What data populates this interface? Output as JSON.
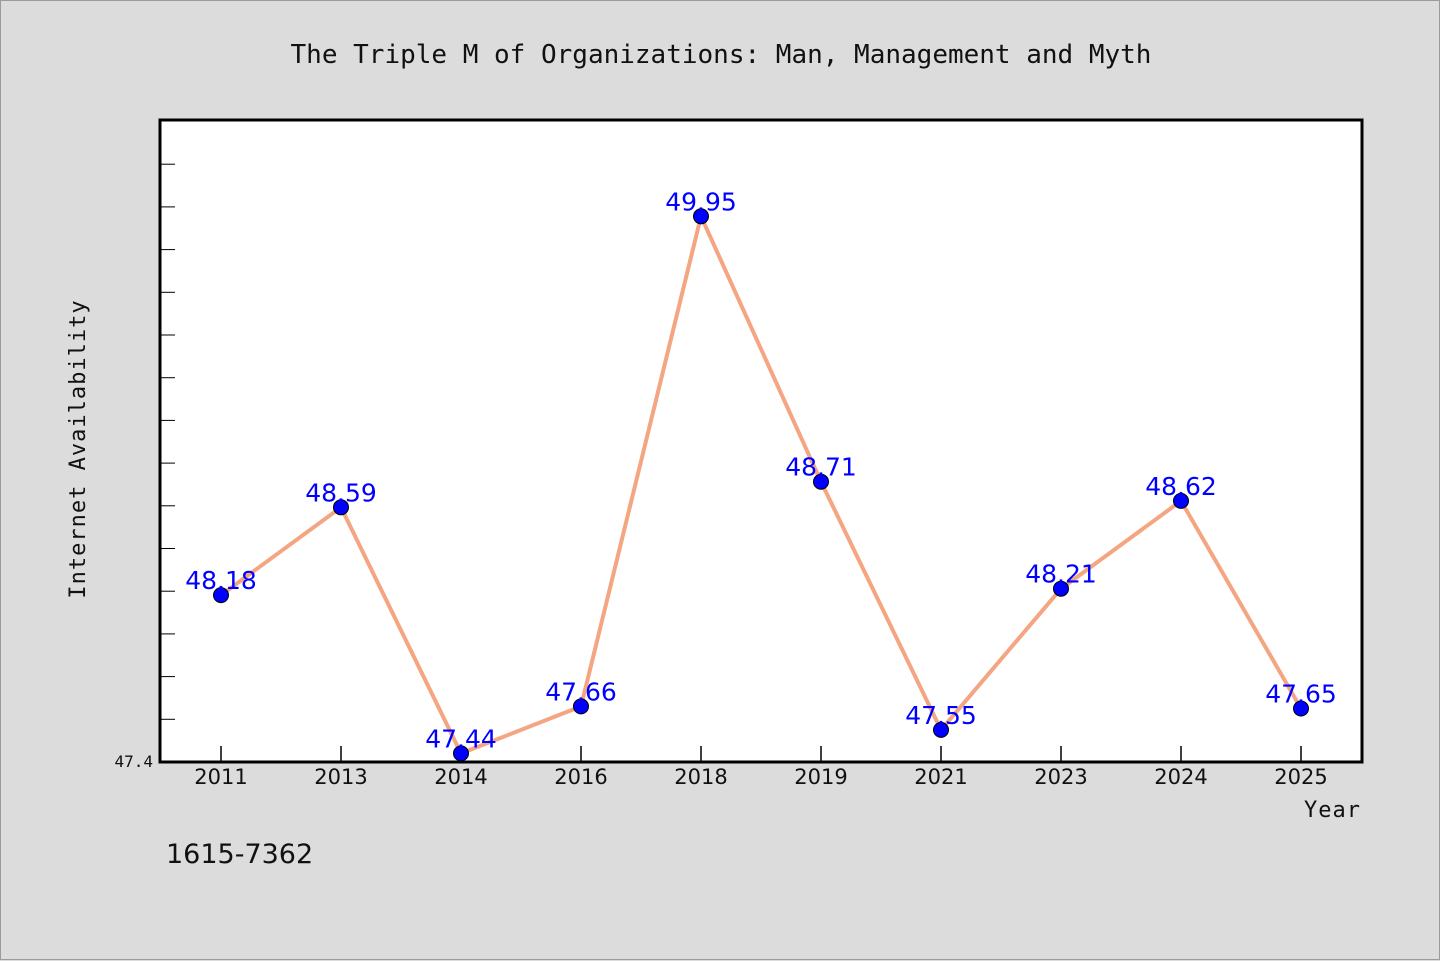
{
  "chart_data": {
    "type": "line",
    "title": "The Triple M of Organizations: Man, Management and Myth",
    "xlabel": "Year",
    "ylabel": "Internet Availability",
    "categories": [
      "2011",
      "2013",
      "2014",
      "2016",
      "2018",
      "2019",
      "2021",
      "2023",
      "2024",
      "2025"
    ],
    "series": [
      {
        "values": [
          48.18,
          48.59,
          47.44,
          47.66,
          49.95,
          48.71,
          47.55,
          48.21,
          48.62,
          47.65
        ],
        "labels": [
          "48.18",
          "48.59",
          "47.44",
          "47.66",
          "49.95",
          "48.71",
          "47.55",
          "48.21",
          "48.62",
          "47.65"
        ]
      }
    ],
    "ylim": [
      47.4,
      50.4
    ],
    "y_tick_label": "47.4",
    "grid": false,
    "legend": "none",
    "line_color": "#f4a582",
    "marker_color": "#0000ff",
    "label_color": "#0000ff"
  },
  "footer": {
    "code": "1615-7362"
  }
}
